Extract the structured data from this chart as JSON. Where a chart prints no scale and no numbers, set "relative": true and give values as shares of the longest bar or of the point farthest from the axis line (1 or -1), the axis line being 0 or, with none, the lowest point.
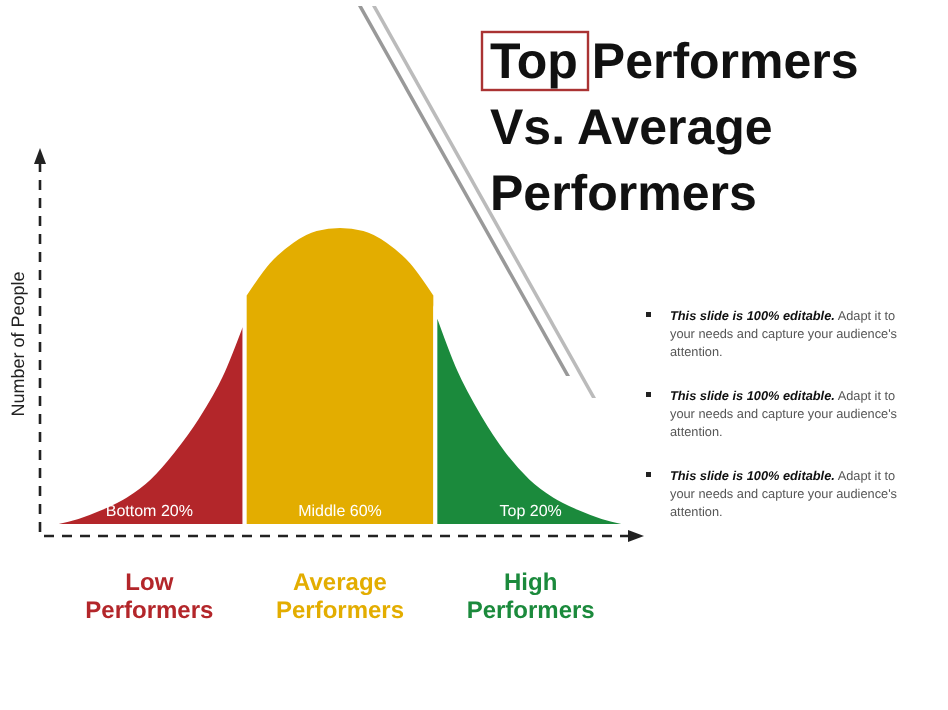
{
  "chart_data": {
    "type": "area",
    "relative": true,
    "title": "Top Performers Vs. Average Performers",
    "ylabel": "Number of People",
    "categories": [
      null,
      null,
      null,
      null,
      null,
      null,
      null,
      null,
      null,
      null,
      null,
      null,
      null,
      null,
      null,
      null,
      null,
      null,
      null,
      null,
      null,
      null,
      null,
      null,
      null
    ],
    "series": [
      {
        "name": "Low Performers",
        "color": "#b3262a",
        "values": [
          0.01,
          0.03,
          0.06,
          0.1,
          0.16,
          0.25,
          0.36,
          0.5,
          0.7,
          null,
          null,
          null,
          null,
          null,
          null,
          null,
          null,
          null,
          null,
          null,
          null,
          null,
          null,
          null,
          null
        ]
      },
      {
        "name": "Average Performers",
        "color": "#e3ad00",
        "values": [
          null,
          null,
          null,
          null,
          null,
          null,
          null,
          null,
          0.77,
          0.88,
          0.95,
          0.99,
          1,
          0.99,
          0.95,
          0.88,
          0.77,
          null,
          null,
          null,
          null,
          null,
          null,
          null,
          null
        ]
      },
      {
        "name": "High Performers",
        "color": "#1b8a3c",
        "values": [
          null,
          null,
          null,
          null,
          null,
          null,
          null,
          null,
          null,
          null,
          null,
          null,
          null,
          null,
          null,
          null,
          0.73,
          0.52,
          0.37,
          0.25,
          0.16,
          0.1,
          0.06,
          0.03,
          0.01
        ]
      }
    ],
    "annotations": [
      "Bottom 20%",
      "Middle 60%",
      "Top 20%",
      "This slide is 100% editable. Adapt it to your needs and capture your audience's attention.",
      "This slide is 100% editable. Adapt it to your needs and capture your audience's attention.",
      "This slide is 100% editable. Adapt it to your needs and capture your audience's attention."
    ],
    "grid": false,
    "legend": false
  }
}
